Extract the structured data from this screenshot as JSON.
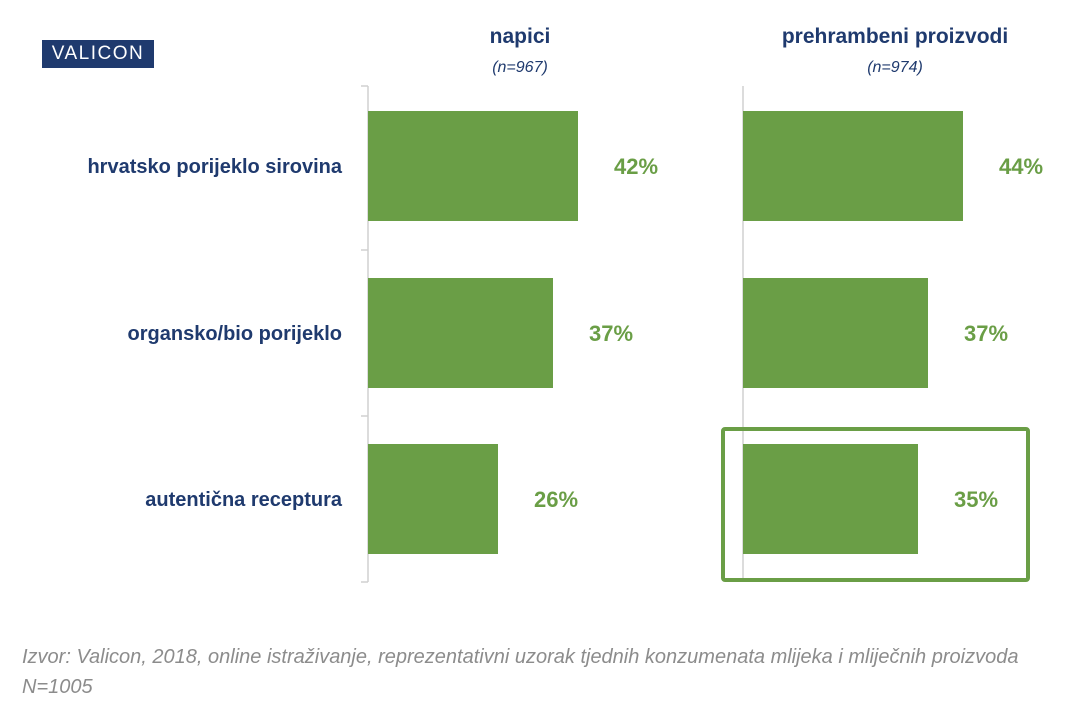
{
  "brand": {
    "logo_text": "VALICON"
  },
  "colors": {
    "bar": "#6a9e46",
    "label": "#1f3a6e",
    "value": "#6a9e46",
    "highlight_border": "#6a9e46",
    "axis": "#d0d0d0"
  },
  "chart_data": {
    "type": "bar",
    "orientation": "horizontal",
    "categories": [
      "hrvatsko porijeklo sirovina",
      "organsko/bio porijeklo",
      "autentična receptura"
    ],
    "xlim": [
      0,
      100
    ],
    "grid": false,
    "series": [
      {
        "name": "napici",
        "sample": "(n=967)",
        "values": [
          42,
          37,
          26
        ],
        "labels": [
          "42%",
          "37%",
          "26%"
        ]
      },
      {
        "name": "prehrambeni proizvodi",
        "sample": "(n=974)",
        "values": [
          44,
          37,
          35
        ],
        "labels": [
          "44%",
          "37%",
          "35%"
        ]
      }
    ],
    "highlight": {
      "series": 1,
      "category": 2
    }
  },
  "footer": {
    "source": "Izvor: Valicon, 2018, online istraživanje, reprezentativni uzorak tjednih konzumenata mlijeka i mliječnih proizvoda N=1005"
  }
}
